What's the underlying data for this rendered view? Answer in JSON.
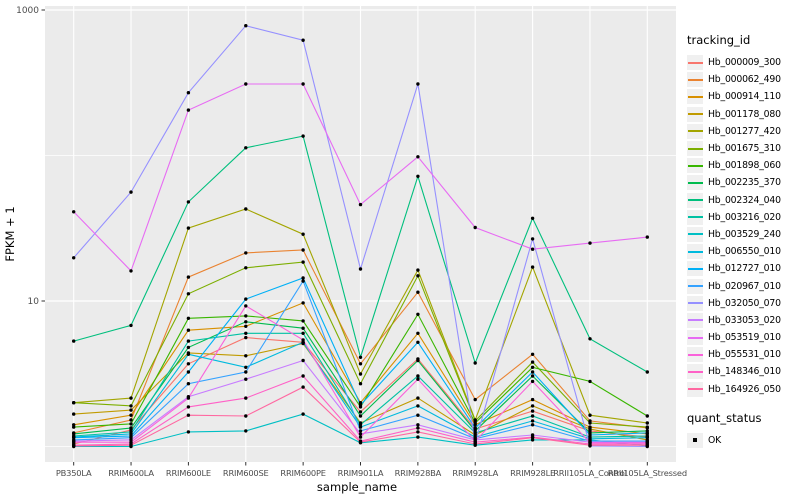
{
  "figure": {
    "background": "#FFFFFF",
    "panel_background": "#EBEBEB",
    "gridline_color": "#FFFFFF",
    "axis_text_color": "#4D4D4D",
    "tick_color": "#333333",
    "point_color": "#000000"
  },
  "y_axis": {
    "title": "FPKM + 1",
    "scale": "log10",
    "tick_labels": [
      "1000",
      "10"
    ],
    "tick_values": [
      1000,
      10
    ],
    "minor_grid_values": [
      100,
      1
    ]
  },
  "x_axis": {
    "title": "sample_name"
  },
  "legend": {
    "tracking_title": "tracking_id",
    "quant_title": "quant_status",
    "quant_items": [
      {
        "label": "OK"
      }
    ]
  },
  "chart_data": {
    "type": "line",
    "title": "",
    "xlabel": "sample_name",
    "ylabel": "FPKM + 1",
    "y_scale": "log10",
    "ylim": [
      1,
      1000
    ],
    "grid": true,
    "legend_position": "right",
    "marker": "black point (quant_status OK)",
    "categories": [
      "PB350LA",
      "RRIM600LA",
      "RRIM600LE",
      "RRIM600SE",
      "RRIM600PE",
      "RRIM901LA",
      "RRIM928BA",
      "RRIM928LA",
      "RRIM928LE",
      "RRII105LA_Control",
      "RRII105LA_Stressed"
    ],
    "series": [
      {
        "name": "Hb_000009_300",
        "color": "#F8766D",
        "values": [
          1.04,
          1.3,
          3.7,
          5.6,
          5.2,
          1.73,
          4.0,
          1.32,
          1.75,
          1.28,
          1.16
        ]
      },
      {
        "name": "Hb_000062_490",
        "color": "#EA8331",
        "values": [
          1.24,
          1.52,
          14.6,
          21.4,
          22.4,
          3.7,
          11.5,
          2.1,
          4.3,
          1.5,
          1.34
        ]
      },
      {
        "name": "Hb_000914_110",
        "color": "#D89000",
        "values": [
          1.41,
          1.64,
          6.3,
          6.7,
          9.7,
          2.0,
          6.0,
          1.41,
          2.1,
          1.36,
          1.22
        ]
      },
      {
        "name": "Hb_001178_080",
        "color": "#C09B00",
        "values": [
          1.67,
          1.78,
          4.4,
          4.2,
          5.1,
          1.45,
          2.15,
          1.2,
          1.9,
          1.32,
          1.11
        ]
      },
      {
        "name": "Hb_001277_420",
        "color": "#A3A500",
        "values": [
          2.0,
          2.15,
          31.7,
          42.9,
          28.8,
          3.15,
          16.3,
          1.52,
          17.1,
          1.64,
          1.45
        ]
      },
      {
        "name": "Hb_001675_310",
        "color": "#7CAE00",
        "values": [
          2.0,
          1.9,
          11.2,
          16.9,
          18.5,
          2.7,
          14.9,
          1.5,
          3.8,
          1.45,
          1.36
        ]
      },
      {
        "name": "Hb_001898_060",
        "color": "#39B600",
        "values": [
          1.36,
          1.43,
          7.6,
          7.9,
          7.3,
          1.87,
          8.1,
          1.45,
          3.5,
          2.8,
          1.62
        ]
      },
      {
        "name": "Hb_002235_370",
        "color": "#00BB4E",
        "values": [
          1.22,
          1.34,
          4.8,
          7.2,
          6.5,
          1.62,
          3.9,
          1.28,
          3.05,
          1.24,
          1.28
        ]
      },
      {
        "name": "Hb_002324_040",
        "color": "#00BF7D",
        "values": [
          5.3,
          6.8,
          48.0,
          113.0,
          136.0,
          4.1,
          72.0,
          3.75,
          37.0,
          5.5,
          3.25
        ]
      },
      {
        "name": "Hb_003216_020",
        "color": "#00C1A3",
        "values": [
          1.18,
          1.26,
          5.3,
          6.0,
          6.0,
          1.41,
          3.05,
          1.24,
          1.62,
          1.16,
          1.18
        ]
      },
      {
        "name": "Hb_003529_240",
        "color": "#00BFC4",
        "values": [
          1.0,
          1.0,
          1.26,
          1.28,
          1.67,
          1.06,
          1.16,
          1.02,
          1.11,
          1.11,
          1.01
        ]
      },
      {
        "name": "Hb_006550_010",
        "color": "#00BADE",
        "values": [
          1.16,
          1.22,
          4.3,
          3.5,
          5.2,
          1.36,
          1.9,
          1.16,
          1.5,
          1.13,
          1.15
        ]
      },
      {
        "name": "Hb_012727_010",
        "color": "#00B0F6",
        "values": [
          1.15,
          1.18,
          3.25,
          10.3,
          14.4,
          1.93,
          5.2,
          1.34,
          3.25,
          1.2,
          1.24
        ]
      },
      {
        "name": "Hb_020967_010",
        "color": "#35A2FF",
        "values": [
          1.11,
          1.15,
          2.7,
          3.25,
          13.7,
          1.28,
          1.64,
          1.13,
          1.41,
          1.09,
          1.09
        ]
      },
      {
        "name": "Hb_032050_070",
        "color": "#9590FF",
        "values": [
          19.8,
          56.0,
          270.0,
          780.0,
          620.0,
          16.6,
          310.0,
          1.06,
          26.7,
          1.01,
          1.0
        ]
      },
      {
        "name": "Hb_033053_020",
        "color": "#C77CFF",
        "values": [
          1.09,
          1.11,
          2.2,
          2.9,
          3.9,
          1.22,
          1.41,
          1.11,
          1.2,
          1.07,
          1.07
        ]
      },
      {
        "name": "Hb_053519_010",
        "color": "#E76BF3",
        "values": [
          41.0,
          16.1,
          205.0,
          310.0,
          310.0,
          46.0,
          98.0,
          32.0,
          22.7,
          25.0,
          27.5
        ]
      },
      {
        "name": "Hb_055531_010",
        "color": "#FA62DB",
        "values": [
          1.07,
          1.07,
          2.15,
          9.25,
          5.4,
          1.16,
          2.9,
          1.09,
          2.8,
          1.06,
          1.06
        ]
      },
      {
        "name": "Hb_148346_010",
        "color": "#FF61C7",
        "values": [
          1.02,
          1.04,
          1.87,
          2.15,
          3.05,
          1.09,
          1.34,
          1.07,
          1.16,
          1.04,
          1.04
        ]
      },
      {
        "name": "Hb_164926_050",
        "color": "#FF68A1",
        "values": [
          1.01,
          1.02,
          1.64,
          1.62,
          2.56,
          1.07,
          1.26,
          1.04,
          1.15,
          1.02,
          1.02
        ]
      }
    ]
  }
}
